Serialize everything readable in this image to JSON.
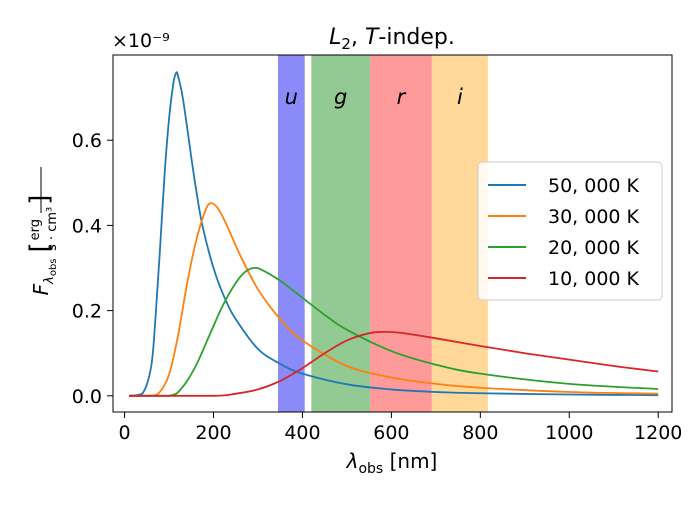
{
  "chart_data": {
    "type": "line",
    "title": "L₂, T-indep.",
    "title_parts": {
      "L": "L",
      "sub": "2",
      "comma": ", ",
      "T": "T",
      "rest": "-indep."
    },
    "xlabel_parts": {
      "lambda": "λ",
      "sub": "obs",
      "unit": " [nm]"
    },
    "ylabel_parts": {
      "F": "F",
      "sub_lambda": "λ",
      "sub_obs": "obs",
      "unit_num": "erg",
      "unit_den": "s · cm³"
    },
    "offset_text": "×10⁻⁹",
    "xlim": [
      -26,
      1231
    ],
    "ylim": [
      -0.038,
      0.8
    ],
    "y_scale_exponent": -9,
    "x_ticks": [
      0,
      200,
      400,
      600,
      800,
      1000,
      1200
    ],
    "x_tick_labels": [
      "0",
      "200",
      "400",
      "600",
      "800",
      "1000",
      "1200"
    ],
    "y_ticks": [
      0.0,
      0.2,
      0.4,
      0.6
    ],
    "y_tick_labels": [
      "0.0",
      "0.2",
      "0.4",
      "0.6"
    ],
    "bands": [
      {
        "label": "u",
        "x_start": 345,
        "x_end": 405,
        "color": "#8a8af8"
      },
      {
        "label": "g",
        "x_start": 420,
        "x_end": 552,
        "color": "#93c993"
      },
      {
        "label": "r",
        "x_start": 552,
        "x_end": 691,
        "color": "#ff9a9a"
      },
      {
        "label": "i",
        "x_start": 691,
        "x_end": 817,
        "color": "#ffd89a"
      }
    ],
    "legend_position": "center-right",
    "series": [
      {
        "name": "50, 000 K",
        "color": "#1f77b4",
        "x": [
          10,
          40,
          60,
          70,
          80,
          90,
          100,
          110,
          116,
          120,
          130,
          140,
          150,
          160,
          175,
          200,
          225,
          250,
          300,
          350,
          400,
          500,
          600,
          700,
          800,
          1000,
          1200
        ],
        "values": [
          0.0,
          0.005,
          0.07,
          0.19,
          0.35,
          0.52,
          0.65,
          0.735,
          0.758,
          0.752,
          0.705,
          0.635,
          0.56,
          0.49,
          0.4,
          0.3,
          0.23,
          0.18,
          0.11,
          0.075,
          0.052,
          0.027,
          0.015,
          0.009,
          0.006,
          0.003,
          0.0015
        ]
      },
      {
        "name": "30, 000 K",
        "color": "#ff7f0e",
        "x": [
          10,
          60,
          80,
          100,
          120,
          140,
          160,
          180,
          193,
          210,
          230,
          260,
          300,
          350,
          400,
          500,
          600,
          700,
          800,
          1000,
          1200
        ],
        "values": [
          0.0,
          0.0,
          0.01,
          0.05,
          0.14,
          0.26,
          0.36,
          0.43,
          0.452,
          0.44,
          0.4,
          0.33,
          0.25,
          0.18,
          0.13,
          0.07,
          0.043,
          0.028,
          0.019,
          0.009,
          0.005
        ]
      },
      {
        "name": "20, 000 K",
        "color": "#2ca02c",
        "x": [
          10,
          100,
          130,
          160,
          190,
          220,
          250,
          270,
          290,
          310,
          350,
          400,
          450,
          500,
          600,
          700,
          800,
          1000,
          1200
        ],
        "values": [
          0.0,
          0.0,
          0.02,
          0.07,
          0.14,
          0.21,
          0.265,
          0.29,
          0.3,
          0.295,
          0.27,
          0.23,
          0.19,
          0.155,
          0.105,
          0.073,
          0.052,
          0.028,
          0.016
        ]
      },
      {
        "name": "10, 000 K",
        "color": "#d62728",
        "x": [
          10,
          200,
          250,
          300,
          350,
          400,
          450,
          500,
          550,
          580,
          620,
          700,
          800,
          900,
          1000,
          1100,
          1200
        ],
        "values": [
          0.0,
          0.0,
          0.005,
          0.015,
          0.035,
          0.065,
          0.1,
          0.13,
          0.147,
          0.15,
          0.148,
          0.135,
          0.117,
          0.1,
          0.085,
          0.07,
          0.057
        ]
      }
    ]
  }
}
